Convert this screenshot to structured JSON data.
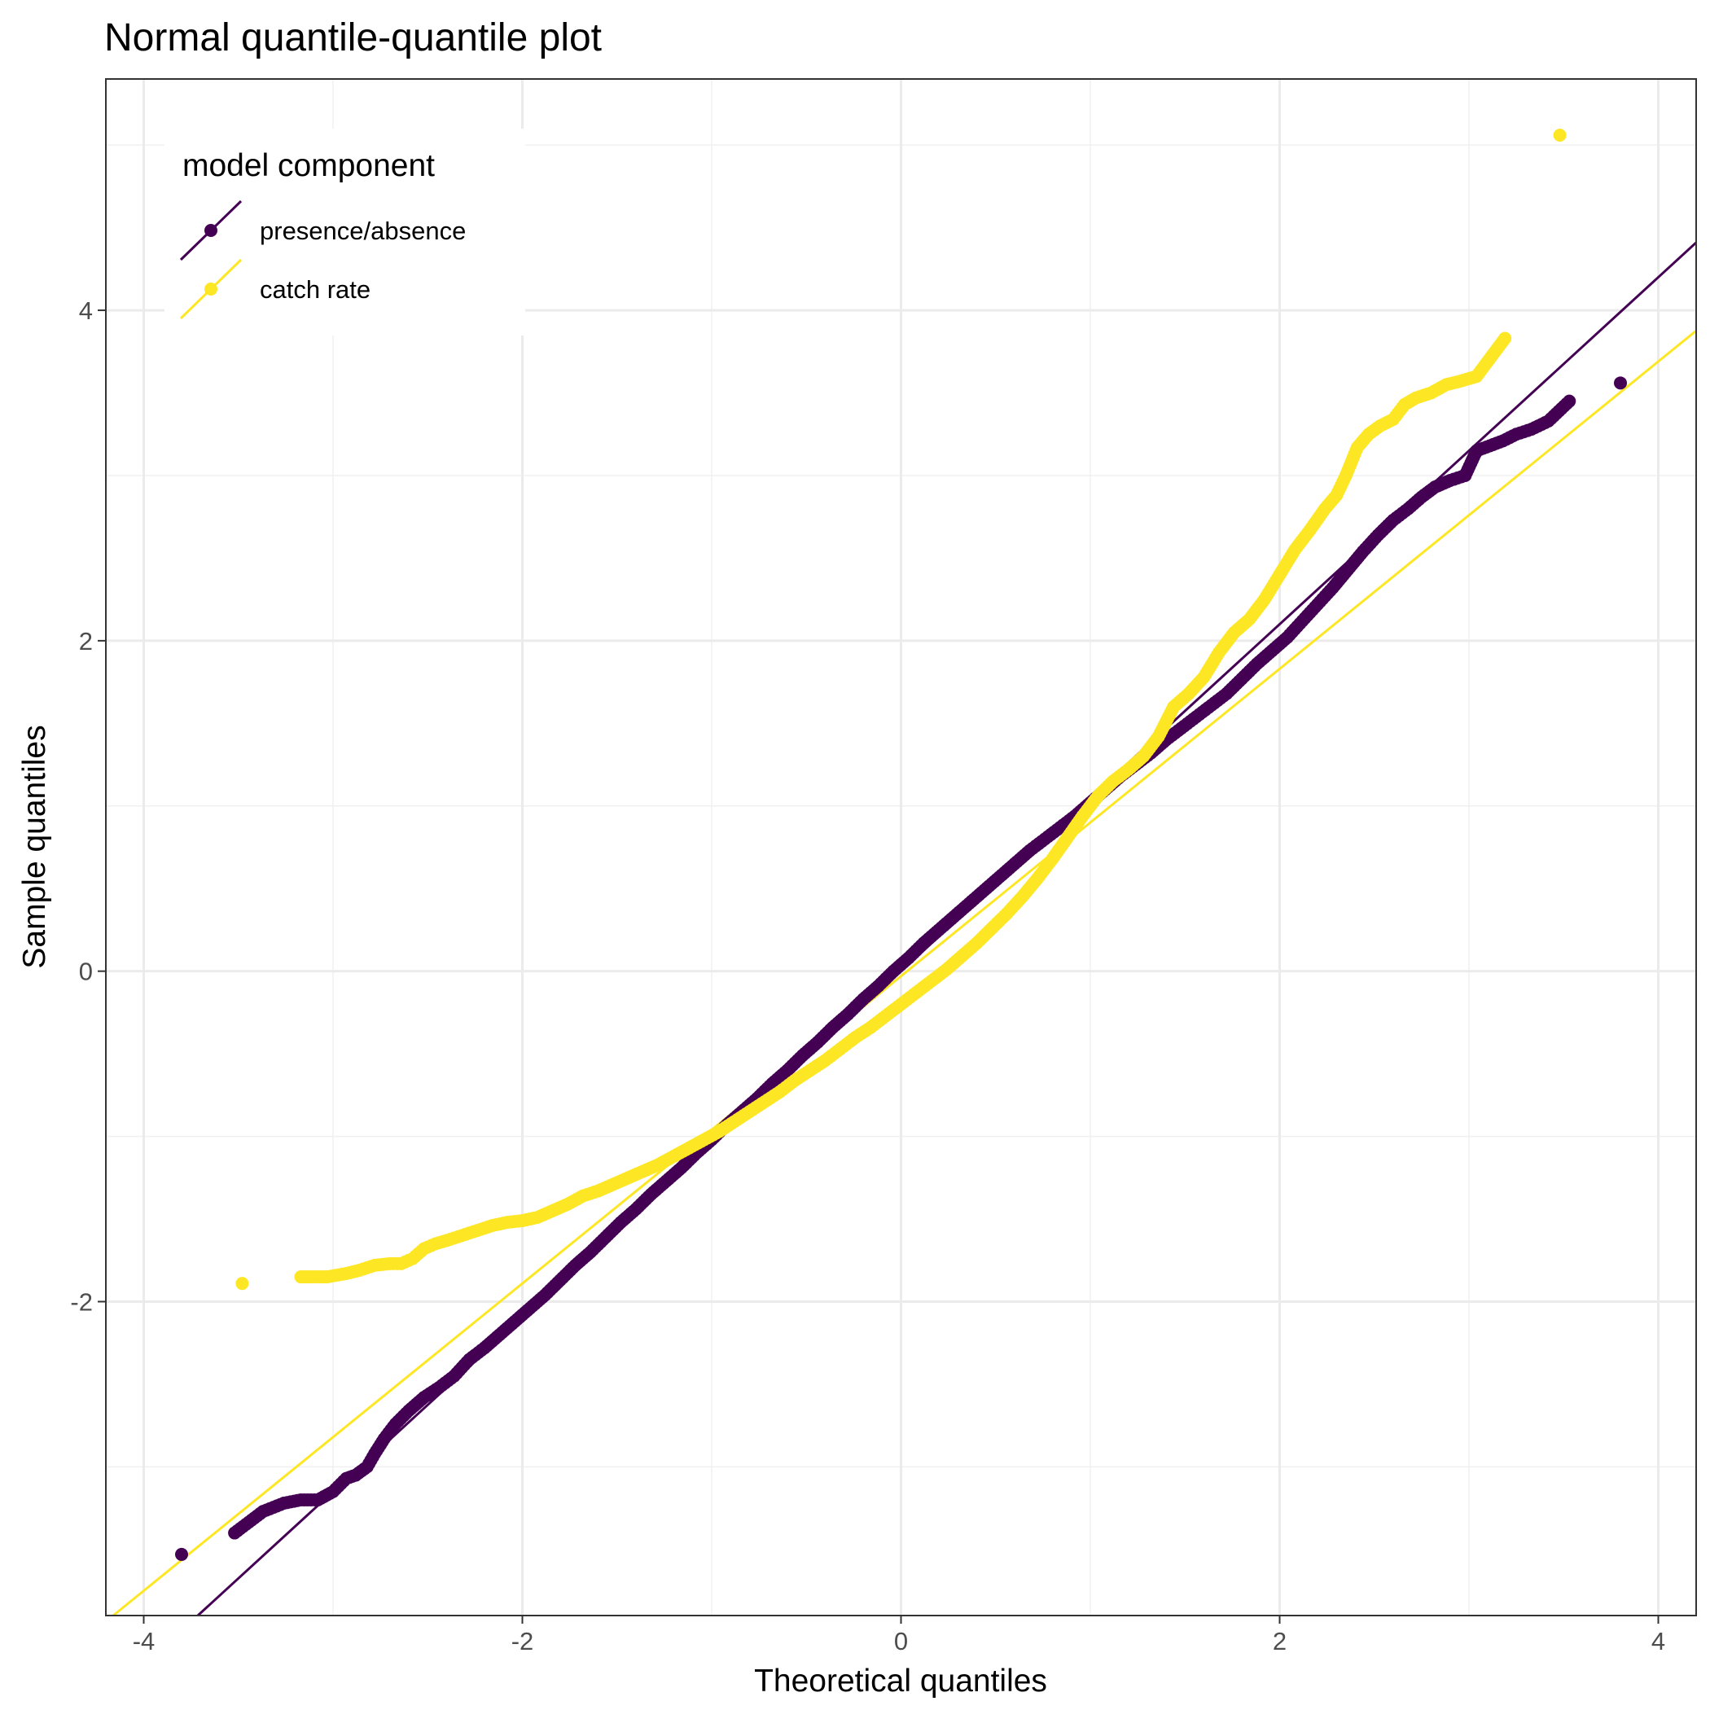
{
  "chart_data": {
    "type": "scatter",
    "title": "Normal quantile-quantile plot",
    "xlabel": "Theoretical quantiles",
    "ylabel": "Sample quantiles",
    "xlim": [
      -4.2,
      4.2
    ],
    "ylim": [
      -3.9,
      5.4
    ],
    "x_ticks": [
      -4,
      -2,
      0,
      2,
      4
    ],
    "y_ticks": [
      -2,
      0,
      2,
      4
    ],
    "x_tick_labels": [
      "-4",
      "-2",
      "0",
      "2",
      "4"
    ],
    "y_tick_labels": [
      "-2",
      "0",
      "2",
      "4"
    ],
    "grid": true,
    "legend": {
      "title": "model component",
      "position": "top-left"
    },
    "series": [
      {
        "name": "presence/absence",
        "color": "#440154",
        "reference_line": {
          "intercept": 0.0,
          "slope": 1.05
        },
        "points": [
          [
            -3.8,
            -3.53
          ],
          [
            -3.52,
            -3.4
          ],
          [
            -3.37,
            -3.27
          ],
          [
            -3.26,
            -3.22
          ],
          [
            -3.17,
            -3.2
          ],
          [
            -3.08,
            -3.2
          ],
          [
            -3.0,
            -3.15
          ],
          [
            -2.93,
            -3.07
          ],
          [
            -2.88,
            -3.05
          ],
          [
            -2.82,
            -3.0
          ],
          [
            -2.78,
            -2.92
          ],
          [
            -2.73,
            -2.83
          ],
          [
            -2.67,
            -2.74
          ],
          [
            -2.6,
            -2.66
          ],
          [
            -2.52,
            -2.58
          ],
          [
            -2.44,
            -2.52
          ],
          [
            -2.36,
            -2.45
          ],
          [
            -2.28,
            -2.35
          ],
          [
            -2.2,
            -2.28
          ],
          [
            -2.12,
            -2.2
          ],
          [
            -2.04,
            -2.12
          ],
          [
            -1.96,
            -2.04
          ],
          [
            -1.88,
            -1.96
          ],
          [
            -1.8,
            -1.87
          ],
          [
            -1.72,
            -1.78
          ],
          [
            -1.64,
            -1.7
          ],
          [
            -1.56,
            -1.61
          ],
          [
            -1.48,
            -1.52
          ],
          [
            -1.4,
            -1.44
          ],
          [
            -1.32,
            -1.35
          ],
          [
            -1.24,
            -1.27
          ],
          [
            -1.16,
            -1.19
          ],
          [
            -1.08,
            -1.1
          ],
          [
            -1.0,
            -1.02
          ],
          [
            -0.92,
            -0.93
          ],
          [
            -0.84,
            -0.85
          ],
          [
            -0.76,
            -0.77
          ],
          [
            -0.68,
            -0.68
          ],
          [
            -0.6,
            -0.6
          ],
          [
            -0.52,
            -0.51
          ],
          [
            -0.44,
            -0.43
          ],
          [
            -0.36,
            -0.34
          ],
          [
            -0.28,
            -0.26
          ],
          [
            -0.2,
            -0.17
          ],
          [
            -0.12,
            -0.09
          ],
          [
            -0.04,
            0.0
          ],
          [
            0.04,
            0.08
          ],
          [
            0.12,
            0.17
          ],
          [
            0.2,
            0.25
          ],
          [
            0.28,
            0.33
          ],
          [
            0.36,
            0.41
          ],
          [
            0.44,
            0.49
          ],
          [
            0.52,
            0.57
          ],
          [
            0.6,
            0.65
          ],
          [
            0.68,
            0.73
          ],
          [
            0.76,
            0.8
          ],
          [
            0.84,
            0.87
          ],
          [
            0.92,
            0.94
          ],
          [
            1.0,
            1.02
          ],
          [
            1.08,
            1.1
          ],
          [
            1.16,
            1.18
          ],
          [
            1.24,
            1.25
          ],
          [
            1.32,
            1.32
          ],
          [
            1.4,
            1.4
          ],
          [
            1.48,
            1.47
          ],
          [
            1.56,
            1.54
          ],
          [
            1.64,
            1.61
          ],
          [
            1.72,
            1.68
          ],
          [
            1.8,
            1.77
          ],
          [
            1.88,
            1.86
          ],
          [
            1.96,
            1.94
          ],
          [
            2.04,
            2.02
          ],
          [
            2.12,
            2.12
          ],
          [
            2.2,
            2.22
          ],
          [
            2.28,
            2.32
          ],
          [
            2.36,
            2.43
          ],
          [
            2.44,
            2.54
          ],
          [
            2.52,
            2.64
          ],
          [
            2.6,
            2.73
          ],
          [
            2.68,
            2.8
          ],
          [
            2.75,
            2.87
          ],
          [
            2.82,
            2.93
          ],
          [
            2.9,
            2.97
          ],
          [
            2.98,
            3.0
          ],
          [
            3.04,
            3.15
          ],
          [
            3.11,
            3.18
          ],
          [
            3.18,
            3.21
          ],
          [
            3.25,
            3.25
          ],
          [
            3.33,
            3.28
          ],
          [
            3.42,
            3.33
          ],
          [
            3.53,
            3.45
          ],
          [
            3.8,
            3.56
          ]
        ]
      },
      {
        "name": "catch rate",
        "color": "#fde725",
        "reference_line": {
          "intercept": -0.03,
          "slope": 0.93
        },
        "points": [
          [
            -3.48,
            -1.89
          ],
          [
            -3.17,
            -1.85
          ],
          [
            -3.03,
            -1.85
          ],
          [
            -2.93,
            -1.83
          ],
          [
            -2.86,
            -1.81
          ],
          [
            -2.78,
            -1.78
          ],
          [
            -2.7,
            -1.77
          ],
          [
            -2.64,
            -1.77
          ],
          [
            -2.58,
            -1.74
          ],
          [
            -2.52,
            -1.68
          ],
          [
            -2.46,
            -1.65
          ],
          [
            -2.4,
            -1.63
          ],
          [
            -2.32,
            -1.6
          ],
          [
            -2.24,
            -1.57
          ],
          [
            -2.16,
            -1.54
          ],
          [
            -2.08,
            -1.52
          ],
          [
            -2.0,
            -1.51
          ],
          [
            -1.92,
            -1.49
          ],
          [
            -1.84,
            -1.45
          ],
          [
            -1.76,
            -1.41
          ],
          [
            -1.68,
            -1.36
          ],
          [
            -1.6,
            -1.33
          ],
          [
            -1.52,
            -1.29
          ],
          [
            -1.44,
            -1.25
          ],
          [
            -1.36,
            -1.21
          ],
          [
            -1.28,
            -1.17
          ],
          [
            -1.2,
            -1.12
          ],
          [
            -1.12,
            -1.07
          ],
          [
            -1.04,
            -1.02
          ],
          [
            -0.96,
            -0.97
          ],
          [
            -0.88,
            -0.91
          ],
          [
            -0.8,
            -0.85
          ],
          [
            -0.72,
            -0.79
          ],
          [
            -0.64,
            -0.73
          ],
          [
            -0.56,
            -0.66
          ],
          [
            -0.48,
            -0.6
          ],
          [
            -0.4,
            -0.54
          ],
          [
            -0.32,
            -0.47
          ],
          [
            -0.24,
            -0.4
          ],
          [
            -0.16,
            -0.34
          ],
          [
            -0.08,
            -0.27
          ],
          [
            0.0,
            -0.2
          ],
          [
            0.08,
            -0.13
          ],
          [
            0.16,
            -0.06
          ],
          [
            0.24,
            0.01
          ],
          [
            0.32,
            0.09
          ],
          [
            0.4,
            0.17
          ],
          [
            0.48,
            0.26
          ],
          [
            0.56,
            0.35
          ],
          [
            0.64,
            0.45
          ],
          [
            0.72,
            0.56
          ],
          [
            0.8,
            0.68
          ],
          [
            0.88,
            0.81
          ],
          [
            0.96,
            0.94
          ],
          [
            1.04,
            1.06
          ],
          [
            1.12,
            1.15
          ],
          [
            1.2,
            1.22
          ],
          [
            1.28,
            1.3
          ],
          [
            1.36,
            1.42
          ],
          [
            1.44,
            1.6
          ],
          [
            1.52,
            1.68
          ],
          [
            1.6,
            1.78
          ],
          [
            1.68,
            1.93
          ],
          [
            1.76,
            2.05
          ],
          [
            1.84,
            2.13
          ],
          [
            1.92,
            2.25
          ],
          [
            2.0,
            2.4
          ],
          [
            2.08,
            2.55
          ],
          [
            2.16,
            2.67
          ],
          [
            2.24,
            2.8
          ],
          [
            2.3,
            2.88
          ],
          [
            2.35,
            3.0
          ],
          [
            2.41,
            3.17
          ],
          [
            2.47,
            3.25
          ],
          [
            2.53,
            3.3
          ],
          [
            2.6,
            3.34
          ],
          [
            2.66,
            3.43
          ],
          [
            2.72,
            3.47
          ],
          [
            2.8,
            3.5
          ],
          [
            2.88,
            3.55
          ],
          [
            2.95,
            3.57
          ],
          [
            3.04,
            3.6
          ],
          [
            3.19,
            3.83
          ],
          [
            3.48,
            5.06
          ]
        ]
      }
    ]
  }
}
